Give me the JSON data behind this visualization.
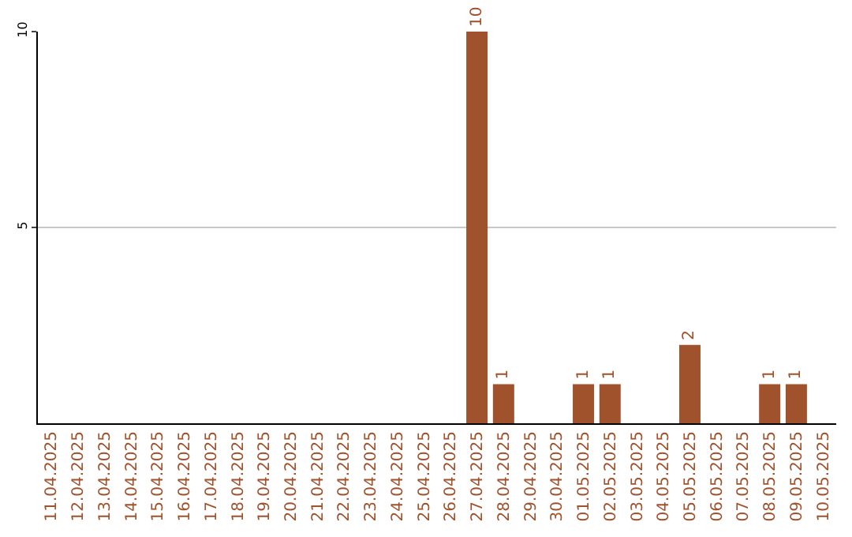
{
  "chart_data": {
    "type": "bar",
    "categories": [
      "11.04.2025",
      "12.04.2025",
      "13.04.2025",
      "14.04.2025",
      "15.04.2025",
      "16.04.2025",
      "17.04.2025",
      "18.04.2025",
      "19.04.2025",
      "20.04.2025",
      "21.04.2025",
      "22.04.2025",
      "23.04.2025",
      "24.04.2025",
      "25.04.2025",
      "26.04.2025",
      "27.04.2025",
      "28.04.2025",
      "29.04.2025",
      "30.04.2025",
      "01.05.2025",
      "02.05.2025",
      "03.05.2025",
      "04.05.2025",
      "05.05.2025",
      "06.05.2025",
      "07.05.2025",
      "08.05.2025",
      "09.05.2025",
      "10.05.2025"
    ],
    "values": [
      0,
      0,
      0,
      0,
      0,
      0,
      0,
      0,
      0,
      0,
      0,
      0,
      0,
      0,
      0,
      0,
      10,
      1,
      0,
      0,
      1,
      1,
      0,
      0,
      2,
      0,
      0,
      1,
      1,
      0
    ],
    "value_labels": [
      null,
      null,
      null,
      null,
      null,
      null,
      null,
      null,
      null,
      null,
      null,
      null,
      null,
      null,
      null,
      null,
      "10",
      "1",
      null,
      null,
      "1",
      "1",
      null,
      null,
      "2",
      null,
      null,
      "1",
      "1",
      null
    ],
    "color": "#a0522d",
    "ylim": [
      0,
      10
    ],
    "yticks": [
      5,
      10
    ],
    "grid": "y"
  }
}
